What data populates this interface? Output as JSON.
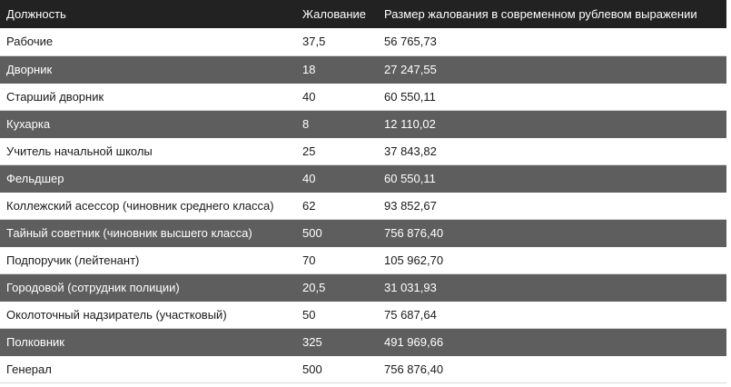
{
  "table": {
    "headers": [
      "Должность",
      "Жалование",
      "Размер жалования в современном рублевом выражении"
    ],
    "rows": [
      {
        "position": "Рабочие",
        "salary": "37,5",
        "modern": "56 765,73"
      },
      {
        "position": "Дворник",
        "salary": "18",
        "modern": "27 247,55"
      },
      {
        "position": "Старший дворник",
        "salary": "40",
        "modern": "60 550,11"
      },
      {
        "position": "Кухарка",
        "salary": "8",
        "modern": "12 110,02"
      },
      {
        "position": "Учитель начальной школы",
        "salary": "25",
        "modern": "37 843,82"
      },
      {
        "position": "Фельдшер",
        "salary": "40",
        "modern": "60 550,11"
      },
      {
        "position": "Коллежский асессор (чиновник среднего класса)",
        "salary": "62",
        "modern": "93 852,67"
      },
      {
        "position": "Тайный советник (чиновник высшего класса)",
        "salary": "500",
        "modern": "756 876,40"
      },
      {
        "position": "Подпоручик (лейтенант)",
        "salary": "70",
        "modern": "105 962,70"
      },
      {
        "position": "Городовой (сотрудник полиции)",
        "salary": "20,5",
        "modern": "31 031,93"
      },
      {
        "position": "Околоточный надзиратель (участковый)",
        "salary": "50",
        "modern": "75 687,64"
      },
      {
        "position": "Полковник",
        "salary": "325",
        "modern": "491 969,66"
      },
      {
        "position": "Генерал",
        "salary": "500",
        "modern": "756 876,40"
      }
    ]
  },
  "colors": {
    "header_bg": "#222222",
    "dark_row_bg": "#5e5e5e",
    "light_row_bg": "#ffffff"
  }
}
